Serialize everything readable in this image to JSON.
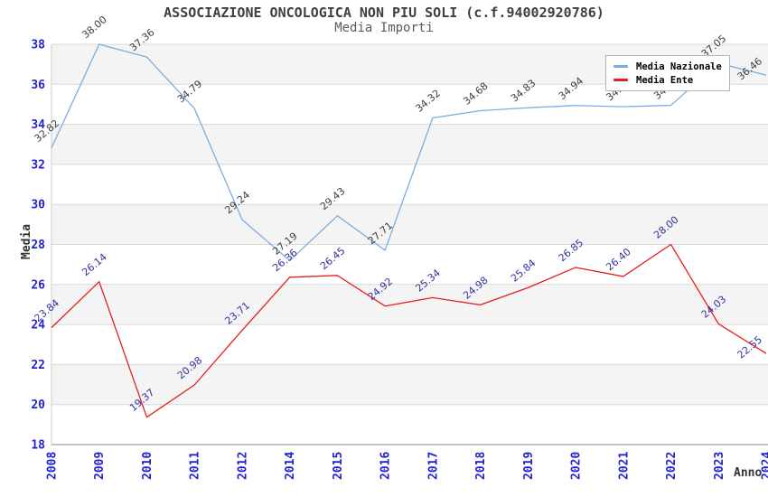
{
  "chart_data": {
    "type": "line",
    "title": "ASSOCIAZIONE ONCOLOGICA NON PIU SOLI (c.f.94002920786)",
    "subtitle": "Media Importi",
    "xlabel": "Anno",
    "ylabel": "Media",
    "categories": [
      "2008",
      "2009",
      "2010",
      "2011",
      "2012",
      "2014",
      "2015",
      "2016",
      "2017",
      "2018",
      "2019",
      "2020",
      "2021",
      "2022",
      "2023",
      "2024"
    ],
    "series": [
      {
        "name": "Media Nazionale",
        "color": "#7aade2",
        "label_color": "#3d3d3d",
        "values": [
          32.82,
          38.0,
          37.36,
          34.79,
          29.24,
          27.19,
          29.43,
          27.71,
          34.32,
          34.68,
          34.83,
          34.94,
          34.88,
          34.95,
          37.05,
          36.46
        ]
      },
      {
        "name": "Media Ente",
        "color": "#e51f1f",
        "label_color": "#32329e",
        "values": [
          23.84,
          26.14,
          19.37,
          20.98,
          23.71,
          26.36,
          26.45,
          24.92,
          25.34,
          24.98,
          25.84,
          26.85,
          26.4,
          28.0,
          24.03,
          22.55
        ]
      }
    ],
    "ylim": [
      18,
      38
    ],
    "ytick_step": 2,
    "yticks": [
      18,
      20,
      22,
      24,
      26,
      28,
      30,
      32,
      34,
      36,
      38
    ],
    "value_label_decimals": 2,
    "grid": "horizontal-alternating-bands",
    "legend_position": "top-right"
  },
  "style": {
    "band_fill": "#f4f4f4",
    "gridline": "#d8d8d8",
    "axis_line": "#8a8a8a",
    "plot_border": "#cccccc",
    "tick_label_color": "#2323cd",
    "axis_title_color": "#333333",
    "title_color": "#404040",
    "subtitle_color": "#5a5a5a",
    "legend_border": "#b4b4b4",
    "legend_text": "#000000"
  }
}
